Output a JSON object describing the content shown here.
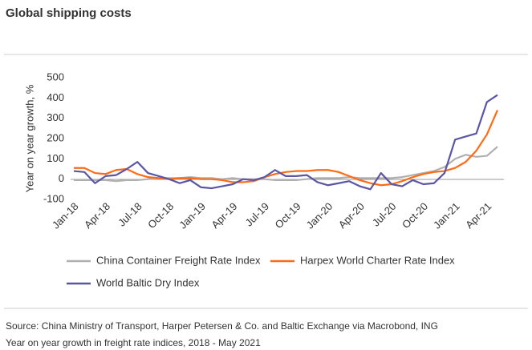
{
  "chart_data": {
    "type": "line",
    "title": "Global shipping costs",
    "y_label": "Year on year growth, %",
    "source": "Source: China Ministry of Transport, Harper Petersen & Co. and Baltic Exchange via Macrobond, ING",
    "subtitle": "Year on year growth in freight rate indices, 2018 - May 2021",
    "categories": [
      "Jan-18",
      null,
      null,
      "Apr-18",
      null,
      null,
      "Jul-18",
      null,
      null,
      "Oct-18",
      null,
      null,
      "Jan-19",
      null,
      null,
      "Apr-19",
      null,
      null,
      "Jul-19",
      null,
      null,
      "Oct-19",
      null,
      null,
      "Jan-20",
      null,
      null,
      "Apr-20",
      null,
      null,
      "Jul-20",
      null,
      null,
      "Oct-20",
      null,
      null,
      "Jan-21",
      null,
      null,
      "Apr-21",
      null
    ],
    "ylim": [
      -100,
      500
    ],
    "yticks": [
      500,
      400,
      300,
      200,
      100,
      0,
      -100
    ],
    "series": [
      {
        "name": "China Container Freight Rate Index",
        "color": "#b0b0b0",
        "values": [
          -5,
          -5,
          -5,
          -5,
          -10,
          -5,
          -5,
          0,
          5,
          5,
          5,
          10,
          5,
          5,
          0,
          5,
          0,
          0,
          0,
          -5,
          -5,
          -5,
          0,
          5,
          5,
          5,
          10,
          5,
          5,
          5,
          5,
          10,
          20,
          30,
          40,
          60,
          100,
          120,
          110,
          115,
          160
        ]
      },
      {
        "name": "Harpex World Charter Rate Index",
        "color": "#ff6a13",
        "values": [
          55,
          55,
          30,
          25,
          45,
          50,
          25,
          10,
          5,
          0,
          5,
          5,
          0,
          0,
          -5,
          -15,
          -15,
          -10,
          10,
          25,
          35,
          40,
          40,
          45,
          45,
          35,
          15,
          -5,
          -20,
          -30,
          -25,
          -10,
          10,
          25,
          35,
          40,
          55,
          85,
          140,
          220,
          340
        ]
      },
      {
        "name": "World Baltic Dry Index",
        "color": "#5a55a5",
        "values": [
          40,
          35,
          -20,
          15,
          20,
          50,
          85,
          30,
          15,
          0,
          -20,
          -5,
          -40,
          -45,
          -35,
          -25,
          0,
          -5,
          10,
          45,
          15,
          15,
          20,
          -15,
          -30,
          -20,
          -10,
          -35,
          -50,
          30,
          -25,
          -35,
          -5,
          -25,
          -20,
          30,
          195,
          210,
          225,
          380,
          415
        ]
      }
    ]
  }
}
